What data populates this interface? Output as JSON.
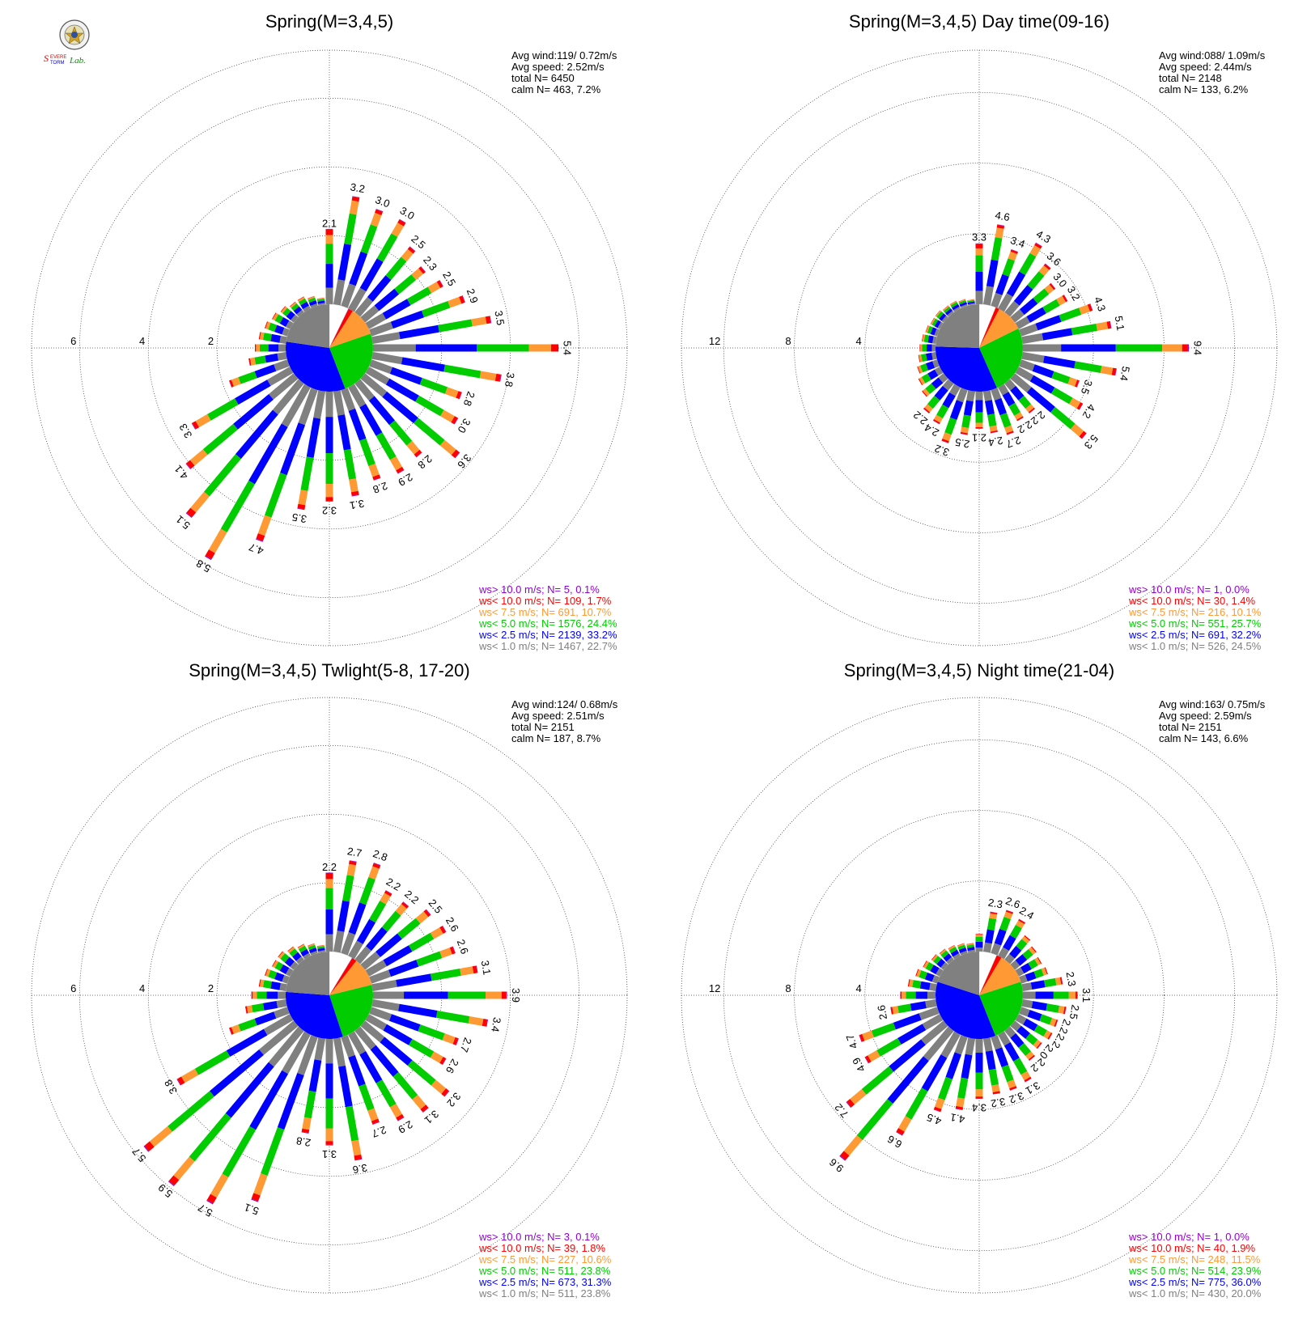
{
  "logo": {
    "text": "Severe Storm Lab."
  },
  "colors": {
    "ws_gt10": "#9400d3",
    "ws_lt10": "#ff0000",
    "ws_lt7_5": "#ff9933",
    "ws_lt5": "#00cc00",
    "ws_lt2_5": "#0000ff",
    "ws_lt1": "#808080",
    "grid": "#444444"
  },
  "chart_data": [
    {
      "type": "windrose",
      "title": "Spring(M=3,4,5)",
      "stats": [
        "Avg wind:119/ 0.72m/s",
        "Avg speed: 2.52m/s",
        "total N=       6450",
        "calm N=    463,   7.2%"
      ],
      "ring_labels": [
        "2",
        "4",
        "6"
      ],
      "ring_values": [
        2,
        4,
        6
      ],
      "max": 7.4,
      "directions": 36,
      "totals": [
        2.1,
        3.2,
        3.0,
        3.0,
        2.5,
        2.3,
        2.5,
        2.9,
        3.5,
        5.4,
        3.8,
        2.8,
        3.0,
        3.6,
        2.8,
        2.9,
        2.8,
        3.1,
        3.2,
        3.5,
        4.7,
        5.8,
        5.1,
        4.1,
        3.3,
        1.8,
        1.1,
        0.9,
        0.8,
        0.7,
        0.6,
        0.5,
        0.4,
        0.4,
        0.3,
        0.2
      ],
      "labeled": [
        0,
        1,
        2,
        3,
        4,
        5,
        6,
        7,
        8,
        9,
        10,
        11,
        12,
        13,
        14,
        15,
        16,
        17,
        18,
        19,
        20,
        21,
        22,
        23,
        24
      ],
      "legend": [
        {
          "label": "ws> 10.0 m/s; N=      5,   0.1%",
          "key": "ws_gt10"
        },
        {
          "label": "ws< 10.0 m/s; N=   109,   1.7%",
          "key": "ws_lt10"
        },
        {
          "label": "ws<  7.5 m/s; N=   691, 10.7%",
          "key": "ws_lt7_5"
        },
        {
          "label": "ws<  5.0 m/s; N=  1576, 24.4%",
          "key": "ws_lt5"
        },
        {
          "label": "ws<  2.5 m/s; N=  2139, 33.2%",
          "key": "ws_lt2_5"
        },
        {
          "label": "ws<  1.0 m/s; N=  1467, 22.7%",
          "key": "ws_lt1"
        }
      ],
      "pie": [
        7.2,
        0.1,
        1.7,
        10.7,
        24.4,
        33.2,
        22.7
      ]
    },
    {
      "type": "windrose",
      "title": "Spring(M=3,4,5) Day time(09-16)",
      "stats": [
        "Avg wind:088/ 1.09m/s",
        "Avg speed: 2.44m/s",
        "total N=       2148",
        "calm N=    133,   6.2%"
      ],
      "ring_labels": [
        "4",
        "8",
        "12"
      ],
      "ring_values": [
        4,
        8,
        12
      ],
      "max": 14.4,
      "directions": 36,
      "totals": [
        3.3,
        4.6,
        3.4,
        4.3,
        3.6,
        3.0,
        3.2,
        4.3,
        5.1,
        9.4,
        5.4,
        3.5,
        4.2,
        5.3,
        2.2,
        2.2,
        2.7,
        2.4,
        2.1,
        2.5,
        3.2,
        2.4,
        2.2,
        1.6,
        1.4,
        1.2,
        1.0,
        0.9,
        0.8,
        0.7,
        0.6,
        0.6,
        0.5,
        0.5,
        0.4,
        0.3
      ],
      "labeled": [
        0,
        1,
        2,
        3,
        4,
        5,
        6,
        7,
        8,
        9,
        10,
        11,
        12,
        13,
        14,
        15,
        16,
        17,
        18,
        19,
        20,
        21,
        22
      ],
      "legend": [
        {
          "label": "ws> 10.0 m/s; N=      1,   0.0%",
          "key": "ws_gt10"
        },
        {
          "label": "ws< 10.0 m/s; N=     30,   1.4%",
          "key": "ws_lt10"
        },
        {
          "label": "ws<  7.5 m/s; N=   216, 10.1%",
          "key": "ws_lt7_5"
        },
        {
          "label": "ws<  5.0 m/s; N=   551, 25.7%",
          "key": "ws_lt5"
        },
        {
          "label": "ws<  2.5 m/s; N=   691, 32.2%",
          "key": "ws_lt2_5"
        },
        {
          "label": "ws<  1.0 m/s; N=   526, 24.5%",
          "key": "ws_lt1"
        }
      ],
      "pie": [
        6.2,
        0.0,
        1.4,
        10.1,
        25.7,
        32.2,
        24.5
      ]
    },
    {
      "type": "windrose",
      "title": "Spring(M=3,4,5) Twlight(5-8, 17-20)",
      "stats": [
        "Avg wind:124/ 0.68m/s",
        "Avg speed: 2.51m/s",
        "total N=       2151",
        "calm N=    187,   8.7%"
      ],
      "ring_labels": [
        "2",
        "4",
        "6"
      ],
      "ring_values": [
        2,
        4,
        6
      ],
      "max": 7.4,
      "directions": 36,
      "totals": [
        2.2,
        2.7,
        2.8,
        2.2,
        2.2,
        2.5,
        2.6,
        2.6,
        3.1,
        3.9,
        3.4,
        2.7,
        2.6,
        3.2,
        3.1,
        2.9,
        2.7,
        3.6,
        3.1,
        2.8,
        5.1,
        5.7,
        5.9,
        5.7,
        3.8,
        1.8,
        1.2,
        1.0,
        0.8,
        0.7,
        0.6,
        0.6,
        0.5,
        0.4,
        0.3,
        0.2
      ],
      "labeled": [
        0,
        1,
        2,
        3,
        4,
        5,
        6,
        7,
        8,
        9,
        10,
        11,
        12,
        13,
        14,
        15,
        16,
        17,
        18,
        19,
        20,
        21,
        22,
        23,
        24
      ],
      "legend": [
        {
          "label": "ws> 10.0 m/s; N=      3,   0.1%",
          "key": "ws_gt10"
        },
        {
          "label": "ws< 10.0 m/s; N=     39,   1.8%",
          "key": "ws_lt10"
        },
        {
          "label": "ws<  7.5 m/s; N=   227, 10.6%",
          "key": "ws_lt7_5"
        },
        {
          "label": "ws<  5.0 m/s; N=   511, 23.8%",
          "key": "ws_lt5"
        },
        {
          "label": "ws<  2.5 m/s; N=   673, 31.3%",
          "key": "ws_lt2_5"
        },
        {
          "label": "ws<  1.0 m/s; N=   511, 23.8%",
          "key": "ws_lt1"
        }
      ],
      "pie": [
        8.7,
        0.1,
        1.8,
        10.6,
        23.8,
        31.3,
        23.8
      ]
    },
    {
      "type": "windrose",
      "title": "Spring(M=3,4,5) Night time(21-04)",
      "stats": [
        "Avg wind:163/ 0.75m/s",
        "Avg speed: 2.59m/s",
        "total N=       2151",
        "calm N=    143,   6.6%"
      ],
      "ring_labels": [
        "4",
        "8",
        "12"
      ],
      "ring_values": [
        4,
        8,
        12
      ],
      "max": 14.4,
      "directions": 36,
      "totals": [
        1.0,
        2.3,
        2.6,
        2.4,
        1.8,
        1.6,
        1.5,
        1.6,
        2.3,
        3.1,
        2.5,
        2.2,
        2.2,
        2.0,
        2.2,
        3.1,
        3.2,
        3.2,
        3.4,
        4.1,
        4.5,
        6.6,
        9.6,
        7.2,
        4.9,
        4.7,
        2.6,
        2.0,
        1.6,
        1.3,
        1.1,
        0.9,
        0.8,
        0.7,
        0.6,
        0.5
      ],
      "labeled": [
        1,
        2,
        3,
        8,
        9,
        10,
        11,
        12,
        13,
        14,
        15,
        16,
        17,
        18,
        19,
        20,
        21,
        22,
        23,
        24,
        25,
        26
      ],
      "legend": [
        {
          "label": "ws> 10.0 m/s; N=      1,   0.0%",
          "key": "ws_gt10"
        },
        {
          "label": "ws< 10.0 m/s; N=     40,   1.9%",
          "key": "ws_lt10"
        },
        {
          "label": "ws<  7.5 m/s; N=   248, 11.5%",
          "key": "ws_lt7_5"
        },
        {
          "label": "ws<  5.0 m/s; N=   514, 23.9%",
          "key": "ws_lt5"
        },
        {
          "label": "ws<  2.5 m/s; N=   775, 36.0%",
          "key": "ws_lt2_5"
        },
        {
          "label": "ws<  1.0 m/s; N=   430, 20.0%",
          "key": "ws_lt1"
        }
      ],
      "pie": [
        6.6,
        0.0,
        1.9,
        11.5,
        23.9,
        36.0,
        20.0
      ]
    }
  ]
}
